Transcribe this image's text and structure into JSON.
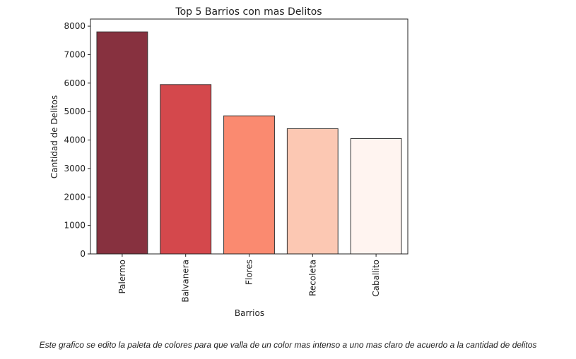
{
  "chart_data": {
    "type": "bar",
    "title": "Top 5 Barrios con mas Delitos",
    "xlabel": "Barrios",
    "ylabel": "Cantidad de Delitos",
    "categories": [
      "Palermo",
      "Balvanera",
      "Flores",
      "Recoleta",
      "Caballito"
    ],
    "values": [
      7800,
      5950,
      4850,
      4400,
      4050
    ],
    "colors": [
      "#87313f",
      "#d4484c",
      "#fa8a70",
      "#fcc8b3",
      "#fff4f0"
    ],
    "ylim": [
      0,
      8250
    ],
    "yticks": [
      0,
      1000,
      2000,
      3000,
      4000,
      5000,
      6000,
      7000,
      8000
    ],
    "grid": false,
    "legend": "none"
  },
  "caption": "Este grafico se edito la paleta de colores para que valla de un color mas intenso a uno mas claro de acuerdo a la cantidad de delitos"
}
